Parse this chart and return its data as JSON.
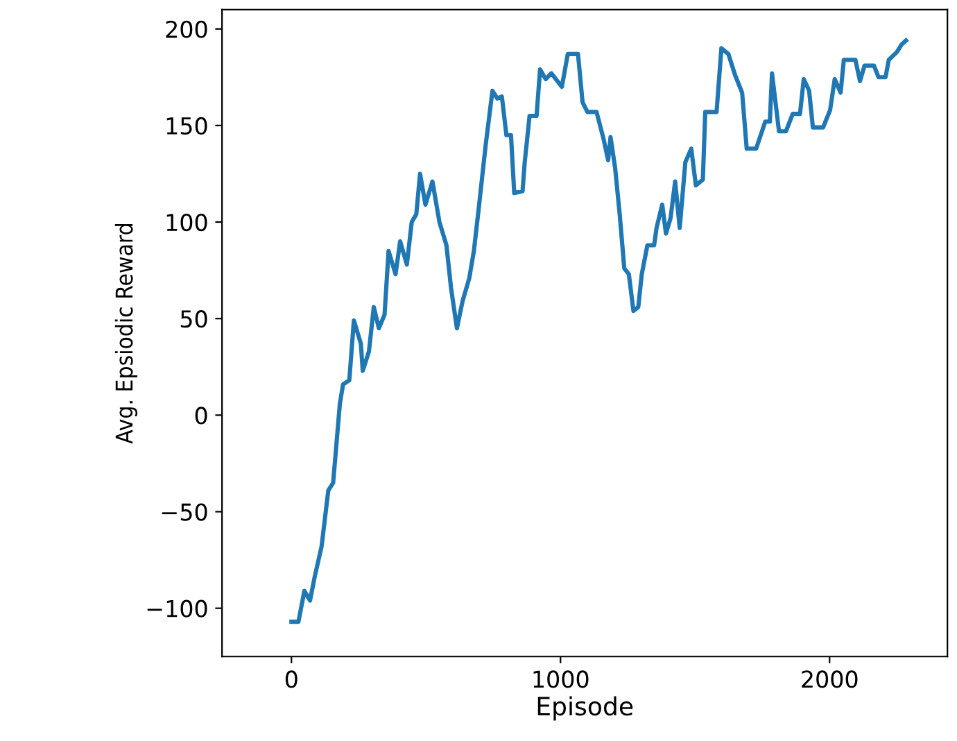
{
  "chart_data": {
    "type": "line",
    "xlabel": "Episode",
    "ylabel": "Avg. Epsiodic Reward",
    "xlim": [
      -258,
      2438
    ],
    "ylim": [
      -125,
      210
    ],
    "xticks": [
      0,
      1000,
      2000
    ],
    "yticks": [
      -100,
      -50,
      0,
      50,
      100,
      150,
      200
    ],
    "grid": false,
    "series": [
      {
        "color": "#1f77b4",
        "x": [
          0,
          26,
          48,
          69,
          86,
          112,
          137,
          155,
          180,
          192,
          215,
          232,
          258,
          265,
          288,
          306,
          325,
          346,
          361,
          387,
          404,
          429,
          447,
          464,
          478,
          498,
          524,
          550,
          576,
          593,
          615,
          636,
          661,
          678,
          696,
          722,
          747,
          765,
          782,
          799,
          816,
          828,
          859,
          867,
          885,
          911,
          924,
          945,
          966,
          1005,
          1027,
          1065,
          1082,
          1100,
          1134,
          1160,
          1177,
          1186,
          1203,
          1220,
          1237,
          1254,
          1271,
          1289,
          1302,
          1323,
          1348,
          1357,
          1378,
          1392,
          1409,
          1426,
          1443,
          1464,
          1486,
          1503,
          1529,
          1538,
          1580,
          1598,
          1624,
          1649,
          1675,
          1692,
          1727,
          1744,
          1761,
          1778,
          1786,
          1812,
          1838,
          1863,
          1890,
          1904,
          1924,
          1938,
          1976,
          2002,
          2019,
          2041,
          2053,
          2096,
          2113,
          2130,
          2165,
          2182,
          2208,
          2220,
          2250,
          2268,
          2284
        ],
        "values": [
          -107,
          -107,
          -91,
          -96,
          -84,
          -68,
          -39,
          -35,
          6,
          16,
          18,
          49,
          37,
          23,
          33,
          56,
          45,
          52,
          85,
          73,
          90,
          78,
          100,
          104,
          125,
          109,
          121,
          100,
          88,
          66,
          45,
          59,
          71,
          85,
          107,
          140,
          168,
          164,
          165,
          145,
          145,
          115,
          116,
          131,
          155,
          155,
          179,
          174,
          177,
          170,
          187,
          187,
          162,
          157,
          157,
          143,
          132,
          144,
          128,
          104,
          76,
          73,
          54,
          56,
          73,
          88,
          88,
          97,
          109,
          94,
          102,
          121,
          97,
          131,
          138,
          119,
          122,
          157,
          157,
          190,
          187,
          176,
          167,
          138,
          138,
          145,
          152,
          152,
          177,
          147,
          147,
          156,
          156,
          174,
          168,
          149,
          149,
          158,
          174,
          167,
          184,
          184,
          173,
          181,
          181,
          175,
          175,
          184,
          188,
          192,
          194
        ]
      }
    ]
  }
}
